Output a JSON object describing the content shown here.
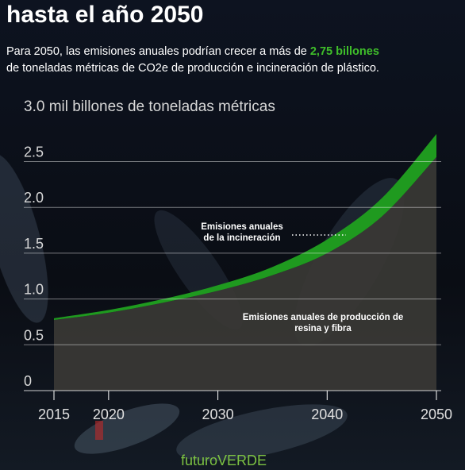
{
  "chart_data": {
    "type": "stacked-area",
    "title": "hasta el año 2050",
    "subtitle": [
      "Para 2050, las emisiones anuales podrían crecer a más de ",
      "2,75 billones",
      "de toneladas métricas de CO2e de producción e incineración de plástico."
    ],
    "highlight_color": "#3fbf2a",
    "x": [
      2015,
      2020,
      2025,
      2030,
      2035,
      2040,
      2045,
      2050
    ],
    "series": [
      {
        "name": [
          "Emisiones anuales de producción de",
          "resina y fibra"
        ],
        "color": "#3a3835",
        "values": [
          0.77,
          0.85,
          0.96,
          1.09,
          1.26,
          1.5,
          1.9,
          2.55
        ]
      },
      {
        "name": [
          "Emisiones anuales",
          "de la incineración"
        ],
        "color": "#1f9a1f",
        "values": [
          0.02,
          0.03,
          0.04,
          0.06,
          0.09,
          0.15,
          0.2,
          0.25
        ]
      }
    ],
    "xlim": [
      2015,
      2050
    ],
    "xticks": [
      2015,
      2020,
      2030,
      2040,
      2050
    ],
    "ylim": [
      0,
      3
    ],
    "yticks": [
      0,
      0.5,
      {
        "value": 1,
        "label": "1.0"
      },
      1.5,
      {
        "value": 2,
        "label": "2.0"
      },
      2.5,
      {
        "value": 3,
        "label": "3.0 mil billones de toneladas métricas"
      }
    ],
    "grid": true,
    "logo": "futuroVERDE"
  }
}
